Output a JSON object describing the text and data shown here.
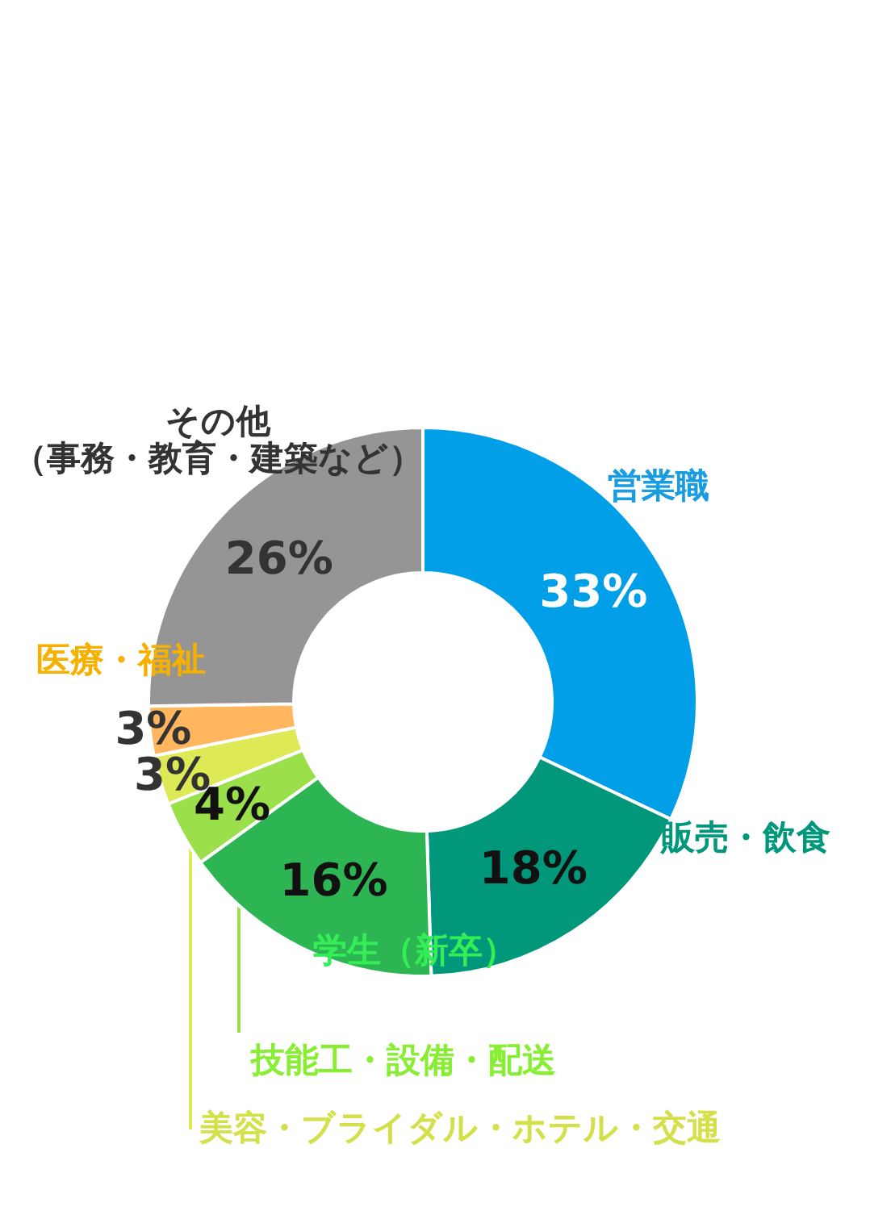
{
  "chart_data": {
    "type": "donut",
    "categories": [
      "営業職",
      "販売・飲食",
      "学生（新卒）",
      "技能工・設備・配送",
      "美容・ブライダル・ホテル・交通",
      "医療・福祉",
      "その他（事務・教育・建築など）"
    ],
    "values": [
      33,
      18,
      16,
      4,
      3,
      3,
      26
    ],
    "colors": [
      "#009fe8",
      "#00977a",
      "#2db553",
      "#9be04a",
      "#dde955",
      "#ffb65e",
      "#959595"
    ],
    "value_labels": [
      "33%",
      "18%",
      "16%",
      "4%",
      "3%",
      "3%",
      "26%"
    ]
  }
}
